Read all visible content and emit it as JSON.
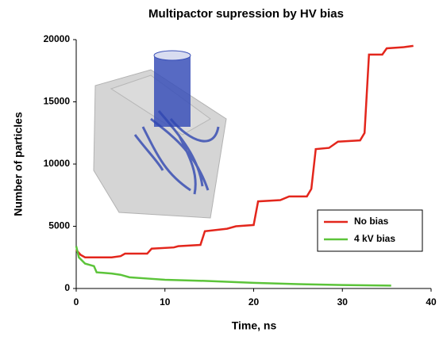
{
  "chart_data": {
    "type": "line",
    "title": "Multipactor supression by HV bias",
    "x_label": "Time, ns",
    "y_label": "Number of particles",
    "xlim": [
      0,
      40
    ],
    "xticks": [
      0,
      10,
      20,
      30,
      40
    ],
    "ylim": [
      0,
      20000
    ],
    "yticks": [
      0,
      5000,
      10000,
      15000,
      20000
    ],
    "legend": "lower right",
    "series": [
      {
        "name": "No bias",
        "color": "#e3261c",
        "x": [
          0,
          0.5,
          1,
          2,
          3,
          4,
          5,
          5.5,
          8,
          8.5,
          11,
          11.5,
          14,
          14.5,
          17,
          18,
          20,
          20.5,
          23,
          24,
          26,
          26.5,
          27,
          28.5,
          29.5,
          32,
          32.5,
          33,
          34.5,
          35,
          37,
          38
        ],
        "values": [
          3100,
          2700,
          2500,
          2500,
          2500,
          2500,
          2600,
          2800,
          2800,
          3200,
          3300,
          3400,
          3500,
          4600,
          4800,
          5000,
          5100,
          7000,
          7100,
          7400,
          7400,
          8000,
          11200,
          11300,
          11800,
          11900,
          12500,
          18800,
          18800,
          19300,
          19400,
          19500
        ]
      },
      {
        "name": "4 kV bias",
        "color": "#5cc43a",
        "x": [
          0,
          0.3,
          1,
          1.5,
          2,
          2.3,
          4,
          5,
          6,
          8,
          10,
          15,
          20,
          25,
          30,
          35.5
        ],
        "values": [
          3400,
          2500,
          2000,
          1900,
          1800,
          1300,
          1200,
          1100,
          900,
          800,
          700,
          600,
          450,
          350,
          280,
          230
        ]
      }
    ]
  }
}
